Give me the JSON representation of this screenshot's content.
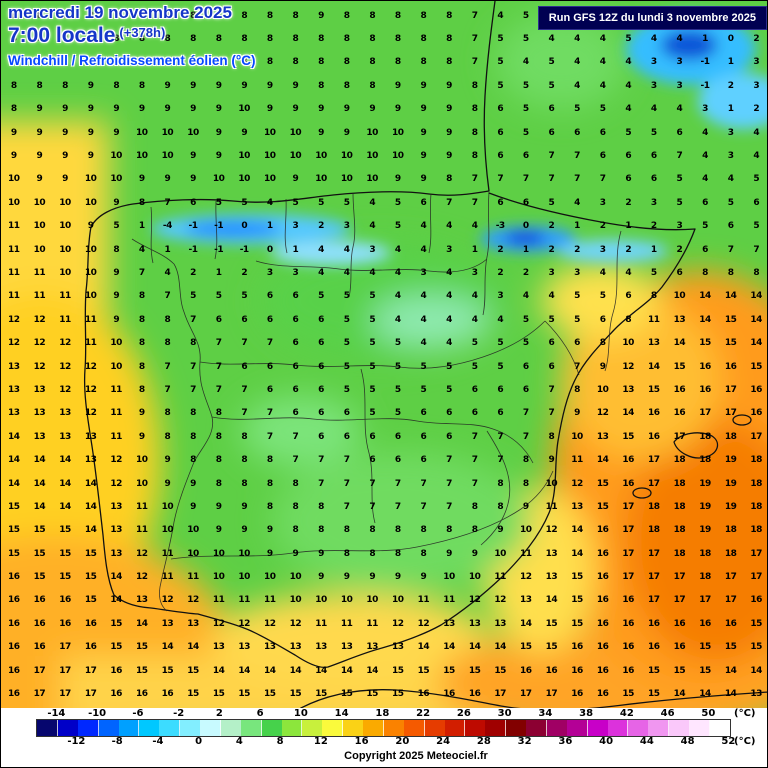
{
  "header": {
    "date_line": "mercredi 19 novembre 2025",
    "time_line": "7:00 locale",
    "offset": "(+378h)",
    "variable_label": "Windchill / Refroidissement éolien (°C)",
    "run_info": "Run GFS 12Z du lundi 3 novembre 2025"
  },
  "footer": {
    "copyright": "Copyright 2025 Meteociel.fr",
    "unit_label": "(°C)"
  },
  "scale": {
    "top_labels": [
      "-14",
      "-10",
      "-6",
      "-2",
      "2",
      "6",
      "10",
      "14",
      "18",
      "22",
      "26",
      "30",
      "34",
      "38",
      "42",
      "46",
      "50"
    ],
    "bottom_labels": [
      "-12",
      "-8",
      "-4",
      "0",
      "4",
      "8",
      "12",
      "16",
      "20",
      "24",
      "28",
      "32",
      "36",
      "40",
      "44",
      "48",
      "52"
    ],
    "colors": [
      "#06066e",
      "#0000c8",
      "#0028ff",
      "#0064ff",
      "#00a0ff",
      "#00c8ff",
      "#3cdcff",
      "#82eeff",
      "#c8faff",
      "#b4f0c8",
      "#78e67d",
      "#46d24b",
      "#8ce63c",
      "#c8f03c",
      "#fafa3c",
      "#fad216",
      "#faaa00",
      "#fa8200",
      "#f55a00",
      "#e63c00",
      "#d21e00",
      "#be0a00",
      "#a00000",
      "#820000",
      "#8c0032",
      "#a00064",
      "#b40096",
      "#c800c8",
      "#dc32dc",
      "#e664e6",
      "#f096f0",
      "#fac8fa",
      "#ffe6ff",
      "#ffffff"
    ]
  },
  "grid": {
    "rows": [
      "8 8 8 8 7 8 8 8 8 8 8 8 9 8 8 8 8 8 7 4 5 4 4 5 4 3 4 3 1 3",
      "8 8 8 8 8 8 8 8 8 8 8 8 8 8 8 8 8 8 7 5 5 4 4 4 5 4 4 1 0 2",
      "8 8 8 8 8 8 8 8 8 8 8 8 8 8 8 8 8 8 7 5 4 5 4 4 4 3 3 -1 1 3",
      "8 8 8 9 8 8 9 9 9 9 9 9 8 8 8 9 9 9 8 5 5 5 4 4 4 3 3 -1 2 3",
      "8 9 9 9 9 9 9 9 9 10 9 9 9 9 9 9 9 9 8 6 5 6 5 5 4 4 4 3 1 2",
      "9 9 9 9 9 10 10 10 9 9 10 10 9 9 10 10 9 9 8 6 5 6 6 6 5 5 6 4 3 4",
      "9 9 9 9 10 10 10 9 9 10 10 10 10 10 10 10 9 9 8 6 6 7 7 6 6 6 7 4 3 4",
      "10 9 9 10 10 9 9 9 10 10 10 9 10 10 10 9 9 8 7 7 7 7 7 7 6 6 5 4 4 5",
      "10 10 10 10 9 8 7 6 5 5 4 5 5 5 4 5 6 7 7 6 6 5 4 3 2 3 5 6 5 6",
      "11 10 10 9 5 1 -4 -1 -1 0 1 3 2 3 4 5 4 4 4 -3 0 2 1 2 1 2 3 5 6 5",
      "11 10 10 10 8 4 1 -1 -1 -1 0 1 4 4 3 4 4 3 1 2 1 2 2 3 2 1 2 6 7 7",
      "11 11 10 10 9 7 4 2 1 2 3 3 4 4 4 4 3 4 3 2 2 3 3 4 4 5 6 8 8 8",
      "11 11 11 10 9 8 7 5 5 5 6 6 5 5 5 4 4 4 4 3 4 4 5 5 6 8 10 14 14 14",
      "12 12 11 11 9 8 8 7 6 6 6 6 6 5 5 4 4 4 4 4 5 5 5 6 8 11 13 14 15 14",
      "12 12 12 11 10 8 8 8 7 7 7 6 6 5 5 5 4 4 5 5 5 6 6 8 10 13 14 15 15 14",
      "13 12 12 12 10 8 7 7 7 6 6 6 6 5 5 5 5 5 5 5 6 6 7 9 12 14 15 16 16 15",
      "13 13 12 12 11 8 7 7 7 7 6 6 6 5 5 5 5 5 6 6 6 7 8 10 13 15 16 16 17 16",
      "13 13 13 12 11 9 8 8 8 7 7 6 6 6 5 5 6 6 6 6 7 7 9 12 14 16 16 17 17 16",
      "14 13 13 13 11 9 8 8 8 8 7 7 6 6 6 6 6 6 7 7 7 8 10 13 15 16 17 18 18 17",
      "14 14 14 13 12 10 9 8 8 8 8 7 7 7 6 6 6 7 7 7 8 9 11 14 16 17 18 18 19 18",
      "14 14 14 14 12 10 9 9 8 8 8 8 7 7 7 7 7 7 7 8 8 10 12 15 16 17 18 19 19 18",
      "15 14 14 14 13 11 10 9 9 9 8 8 8 7 7 7 7 7 8 8 9 11 13 15 17 18 18 19 19 18",
      "15 15 15 14 13 11 10 10 9 9 9 8 8 8 8 8 8 8 8 9 10 12 14 16 17 18 18 19 18 18",
      "15 15 15 15 13 12 11 10 10 10 9 9 9 8 8 8 8 9 9 10 11 13 14 16 17 17 18 18 18 17",
      "16 15 15 15 14 12 11 11 10 10 10 10 9 9 9 9 9 10 10 11 12 13 15 16 17 17 17 18 17 17",
      "16 16 16 15 14 13 12 12 11 11 11 10 10 10 10 10 11 11 12 12 13 14 15 16 16 17 17 17 17 16",
      "16 16 16 16 15 14 13 13 12 12 12 12 11 11 11 12 12 13 13 13 14 15 15 16 16 16 16 16 16 15",
      "16 16 17 16 15 15 14 14 13 13 13 13 13 13 13 13 14 14 14 14 15 15 16 16 16 16 16 15 15 15",
      "16 17 17 17 16 15 15 15 14 14 14 14 14 14 14 15 15 15 15 15 16 16 16 16 16 15 15 15 14 14",
      "16 17 17 17 16 16 16 15 15 15 15 15 15 15 15 15 16 16 16 17 17 17 16 16 15 15 14 14 14 13"
    ]
  }
}
